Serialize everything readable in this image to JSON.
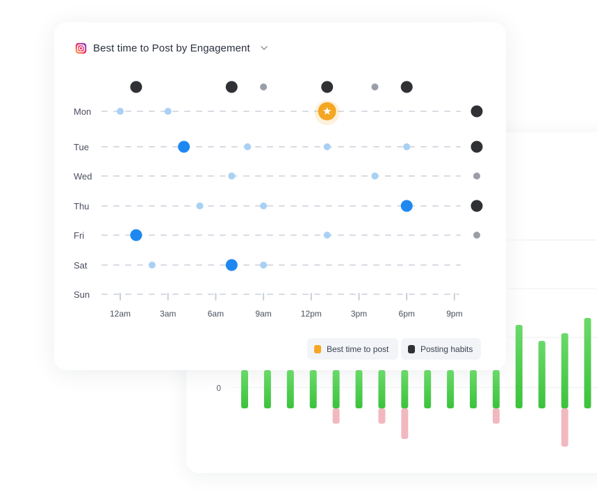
{
  "header": {
    "title": "Best time to Post by Engagement",
    "platform_icon": "instagram-icon",
    "dropdown_icon": "chevron-down-icon"
  },
  "legend": {
    "best_time_label": "Best time to post",
    "posting_habits_label": "Posting habits",
    "best_time_color": "#f5a623",
    "posting_habits_color": "#2f3135"
  },
  "colors": {
    "engagement_dot": "#1e88f0",
    "engagement_dot_light": "#a9d0f5",
    "habit_dot": "#2f3135",
    "habit_dot_small": "#9a9ea6",
    "best_time": "#f5a623",
    "positive_bar": "#3cc23c",
    "negative_bar": "#f2b8c0"
  },
  "chart_data": [
    {
      "type": "scatter",
      "title": "Best time to Post by Engagement",
      "days": [
        "Mon",
        "Tue",
        "Wed",
        "Thu",
        "Fri",
        "Sat",
        "Sun"
      ],
      "x_tick_labels": [
        "12am",
        "3am",
        "6am",
        "9am",
        "12pm",
        "3pm",
        "6pm",
        "9pm"
      ],
      "x_ticks_hours": [
        0,
        3,
        6,
        9,
        12,
        15,
        18,
        21
      ],
      "xlim": [
        0,
        22
      ],
      "engagement_points": [
        {
          "day": "Mon",
          "hour": 0,
          "size": "small"
        },
        {
          "day": "Mon",
          "hour": 3,
          "size": "small"
        },
        {
          "day": "Tue",
          "hour": 4,
          "size": "large"
        },
        {
          "day": "Tue",
          "hour": 8,
          "size": "small"
        },
        {
          "day": "Tue",
          "hour": 13,
          "size": "small"
        },
        {
          "day": "Tue",
          "hour": 18,
          "size": "small"
        },
        {
          "day": "Wed",
          "hour": 7,
          "size": "small"
        },
        {
          "day": "Wed",
          "hour": 16,
          "size": "small"
        },
        {
          "day": "Thu",
          "hour": 5,
          "size": "small"
        },
        {
          "day": "Thu",
          "hour": 9,
          "size": "small"
        },
        {
          "day": "Thu",
          "hour": 18,
          "size": "large"
        },
        {
          "day": "Fri",
          "hour": 1,
          "size": "large"
        },
        {
          "day": "Fri",
          "hour": 13,
          "size": "small"
        },
        {
          "day": "Sat",
          "hour": 2,
          "size": "small"
        },
        {
          "day": "Sat",
          "hour": 7,
          "size": "large"
        },
        {
          "day": "Sat",
          "hour": 9,
          "size": "small"
        }
      ],
      "best_time": {
        "day": "Mon",
        "hour": 13
      },
      "posting_habits_by_hour": [
        {
          "hour": 1,
          "size": "large"
        },
        {
          "hour": 7,
          "size": "large"
        },
        {
          "hour": 9,
          "size": "small"
        },
        {
          "hour": 13,
          "size": "large"
        },
        {
          "hour": 16,
          "size": "small"
        },
        {
          "hour": 18,
          "size": "large"
        }
      ],
      "posting_habits_by_day": [
        {
          "day": "Mon",
          "size": "large"
        },
        {
          "day": "Tue",
          "size": "large"
        },
        {
          "day": "Wed",
          "size": "small"
        },
        {
          "day": "Thu",
          "size": "large"
        },
        {
          "day": "Fri",
          "size": "small"
        }
      ],
      "legend": [
        "Best time to post",
        "Posting habits"
      ],
      "legend_position": "bottom-right"
    },
    {
      "type": "bar",
      "y_tick_labels": [
        "0"
      ],
      "ylim": [
        -60,
        130
      ],
      "positive_values": [
        55,
        55,
        55,
        55,
        55,
        55,
        55,
        55,
        55,
        55,
        55,
        55,
        120,
        97,
        108,
        130
      ],
      "negative_values": [
        0,
        0,
        0,
        0,
        -22,
        0,
        -22,
        -44,
        0,
        0,
        0,
        -22,
        0,
        0,
        -55,
        0
      ]
    }
  ]
}
